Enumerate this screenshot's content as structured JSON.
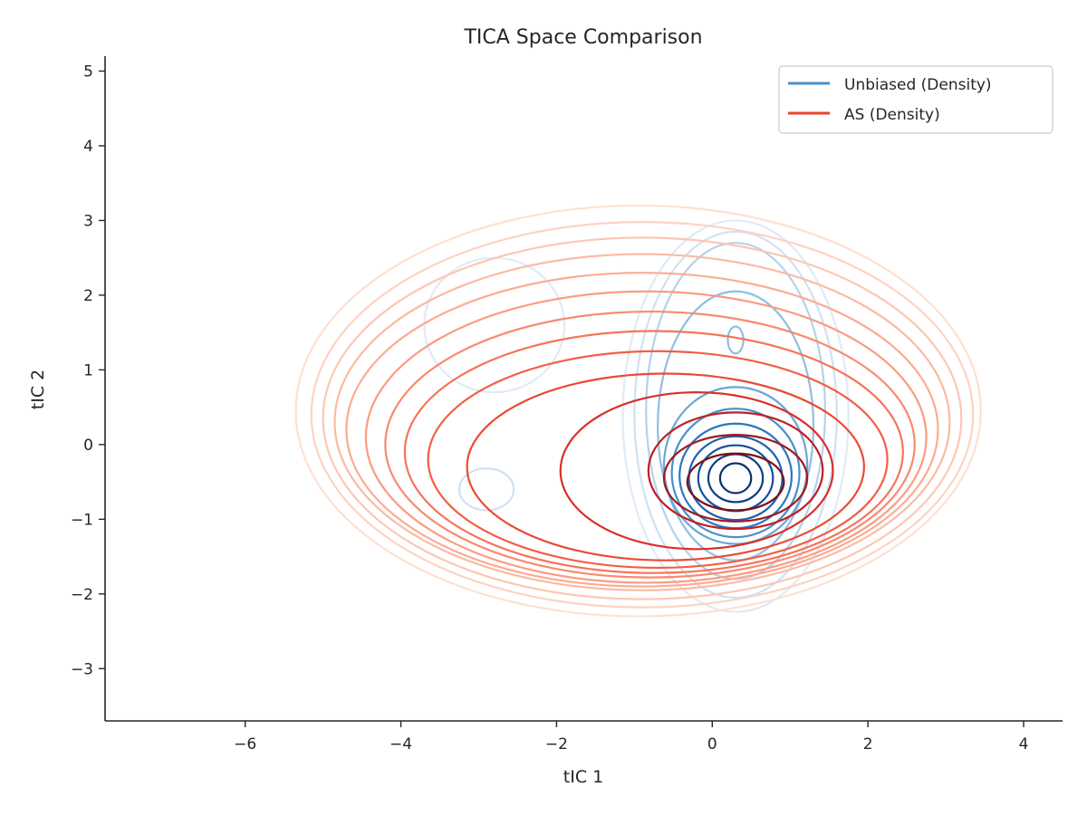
{
  "chart_data": {
    "type": "contour",
    "title": "TICA Space Comparison",
    "xlabel": "tIC 1",
    "ylabel": "tIC 2",
    "xlim": [
      -7.8,
      4.5
    ],
    "ylim": [
      -3.7,
      5.2
    ],
    "xticks": [
      -6,
      -4,
      -2,
      0,
      2,
      4
    ],
    "yticks": [
      -3,
      -2,
      -1,
      0,
      1,
      2,
      3,
      4,
      5
    ],
    "legend_position": "top-right",
    "grid": false,
    "series": [
      {
        "name": "Unbiased (Density)",
        "legend_color": "#4a90c8",
        "colormap": "Blues",
        "levels": [
          {
            "cx": 0.3,
            "cy": -0.45,
            "rx": 0.2,
            "ry": 0.2,
            "color": "#08306b"
          },
          {
            "cx": 0.3,
            "cy": -0.45,
            "rx": 0.35,
            "ry": 0.32,
            "color": "#0b3f7e"
          },
          {
            "cx": 0.3,
            "cy": -0.45,
            "rx": 0.48,
            "ry": 0.44,
            "color": "#10509a"
          },
          {
            "cx": 0.3,
            "cy": -0.45,
            "rx": 0.6,
            "ry": 0.56,
            "color": "#1d62ab"
          },
          {
            "cx": 0.3,
            "cy": -0.42,
            "rx": 0.72,
            "ry": 0.7,
            "color": "#2c77bb"
          },
          {
            "cx": 0.3,
            "cy": -0.38,
            "rx": 0.82,
            "ry": 0.86,
            "color": "#4a90c8"
          },
          {
            "cx": 0.3,
            "cy": -0.28,
            "rx": 0.92,
            "ry": 1.05,
            "color": "#6aa8d5"
          },
          {
            "cx": 0.3,
            "cy": 0.25,
            "rx": 1.0,
            "ry": 1.8,
            "color": "#8fbfe0"
          },
          {
            "cx": 0.3,
            "cy": 1.4,
            "rx": 0.1,
            "ry": 0.18,
            "color": "#8fbfe0"
          },
          {
            "cx": 0.3,
            "cy": 0.45,
            "rx": 1.15,
            "ry": 2.25,
            "color": "#b3d3eb"
          },
          {
            "cx": 0.3,
            "cy": 0.4,
            "rx": 1.3,
            "ry": 2.45,
            "color": "#cfe2f3"
          },
          {
            "cx": 0.3,
            "cy": 0.38,
            "rx": 1.45,
            "ry": 2.62,
            "color": "#deebf7"
          },
          {
            "cx": -2.8,
            "cy": 1.6,
            "rx": 0.9,
            "ry": 0.9,
            "color": "#deebf7"
          },
          {
            "cx": -2.9,
            "cy": -0.6,
            "rx": 0.35,
            "ry": 0.28,
            "color": "#cfe2f3"
          }
        ]
      },
      {
        "name": "AS (Density)",
        "legend_color": "#e8412b",
        "colormap": "Reds",
        "levels": [
          {
            "cx": 0.3,
            "cy": -0.5,
            "rx": 0.62,
            "ry": 0.38,
            "color": "#800d15"
          },
          {
            "cx": 0.3,
            "cy": -0.45,
            "rx": 0.92,
            "ry": 0.58,
            "color": "#a11720"
          },
          {
            "cx": 0.3,
            "cy": -0.35,
            "rx": 1.12,
            "ry": 0.78,
            "color": "#bf1e27"
          },
          {
            "cx": -0.2,
            "cy": -0.35,
            "rx": 1.75,
            "ry": 1.05,
            "color": "#d92f2b"
          },
          {
            "cx": -0.6,
            "cy": -0.3,
            "rx": 2.55,
            "ry": 1.25,
            "color": "#ea4a33"
          },
          {
            "cx": -0.7,
            "cy": -0.2,
            "rx": 2.95,
            "ry": 1.45,
            "color": "#f15f45"
          },
          {
            "cx": -0.75,
            "cy": -0.1,
            "rx": 3.2,
            "ry": 1.62,
            "color": "#f6745a"
          },
          {
            "cx": -0.8,
            "cy": 0.0,
            "rx": 3.4,
            "ry": 1.78,
            "color": "#f98a6f"
          },
          {
            "cx": -0.85,
            "cy": 0.1,
            "rx": 3.6,
            "ry": 1.95,
            "color": "#fb9c82"
          },
          {
            "cx": -0.9,
            "cy": 0.2,
            "rx": 3.8,
            "ry": 2.1,
            "color": "#fcab92"
          },
          {
            "cx": -0.9,
            "cy": 0.3,
            "rx": 3.95,
            "ry": 2.25,
            "color": "#fcbaa2"
          },
          {
            "cx": -0.9,
            "cy": 0.35,
            "rx": 4.1,
            "ry": 2.42,
            "color": "#fdc7b2"
          },
          {
            "cx": -0.9,
            "cy": 0.4,
            "rx": 4.25,
            "ry": 2.58,
            "color": "#fdd3c2"
          },
          {
            "cx": -0.95,
            "cy": 0.45,
            "rx": 4.4,
            "ry": 2.75,
            "color": "#fee0d2"
          }
        ]
      }
    ]
  }
}
